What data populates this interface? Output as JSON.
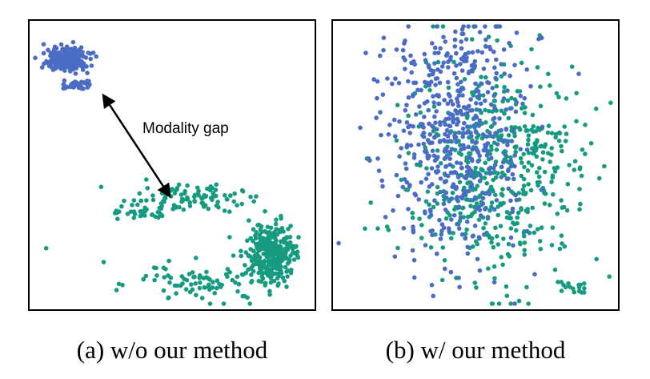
{
  "chart_data": [
    {
      "type": "scatter",
      "caption": "(a) w/o our method",
      "annotation": "Modality gap",
      "xlim": [
        0,
        1
      ],
      "ylim": [
        0,
        1
      ],
      "axes_visible": false,
      "grid": false,
      "series": [
        {
          "color": "#4a6cc4",
          "clusters": [
            {
              "cx": 0.12,
              "cy": 0.88,
              "sx": 0.035,
              "sy": 0.022,
              "n": 220,
              "dist": "gauss"
            },
            {
              "cx": 0.15,
              "cy": 0.79,
              "sx": 0.05,
              "sy": 0.015,
              "n": 35,
              "dist": "uniform"
            }
          ]
        },
        {
          "color": "#169a80",
          "clusters": [
            {
              "cx": 0.87,
              "cy": 0.18,
              "sx": 0.045,
              "sy": 0.05,
              "n": 260,
              "dist": "gauss"
            },
            {
              "cx": 0.54,
              "cy": 0.38,
              "sx": 0.11,
              "sy": 0.025,
              "n": 110,
              "dist": "gauss"
            },
            {
              "cx": 0.38,
              "cy": 0.32,
              "sx": 0.09,
              "sy": 0.015,
              "n": 25,
              "dist": "uniform"
            },
            {
              "cx": 0.64,
              "cy": 0.07,
              "sx": 0.13,
              "sy": 0.035,
              "n": 80,
              "dist": "gauss"
            },
            {
              "cx": 0.83,
              "cy": 0.23,
              "sx": 0.03,
              "sy": 0.04,
              "n": 30,
              "dist": "gauss"
            },
            {
              "cx": 0.45,
              "cy": 0.11,
              "sx": 0.05,
              "sy": 0.02,
              "n": 8,
              "dist": "uniform"
            }
          ],
          "points": [
            [
              0.04,
              0.2
            ],
            [
              0.25,
              0.15
            ],
            [
              0.71,
              0.24
            ],
            [
              0.78,
              0.3
            ]
          ]
        }
      ],
      "arrow": {
        "from": [
          0.25,
          0.75
        ],
        "to": [
          0.49,
          0.39
        ]
      }
    },
    {
      "type": "scatter",
      "caption": "(b) w/ our method",
      "xlim": [
        0,
        1
      ],
      "ylim": [
        0,
        1
      ],
      "axes_visible": false,
      "grid": false,
      "series": [
        {
          "color": "#169a80",
          "clusters": [
            {
              "cx": 0.58,
              "cy": 0.48,
              "sx": 0.16,
              "sy": 0.2,
              "n": 520,
              "dist": "gauss"
            },
            {
              "cx": 0.85,
              "cy": 0.06,
              "sx": 0.05,
              "sy": 0.02,
              "n": 18,
              "dist": "uniform"
            }
          ]
        },
        {
          "color": "#4a6cc4",
          "clusters": [
            {
              "cx": 0.42,
              "cy": 0.58,
              "sx": 0.13,
              "sy": 0.2,
              "n": 480,
              "dist": "gauss"
            },
            {
              "cx": 0.42,
              "cy": 0.88,
              "sx": 0.12,
              "sy": 0.05,
              "n": 60,
              "dist": "gauss"
            }
          ]
        }
      ]
    }
  ]
}
